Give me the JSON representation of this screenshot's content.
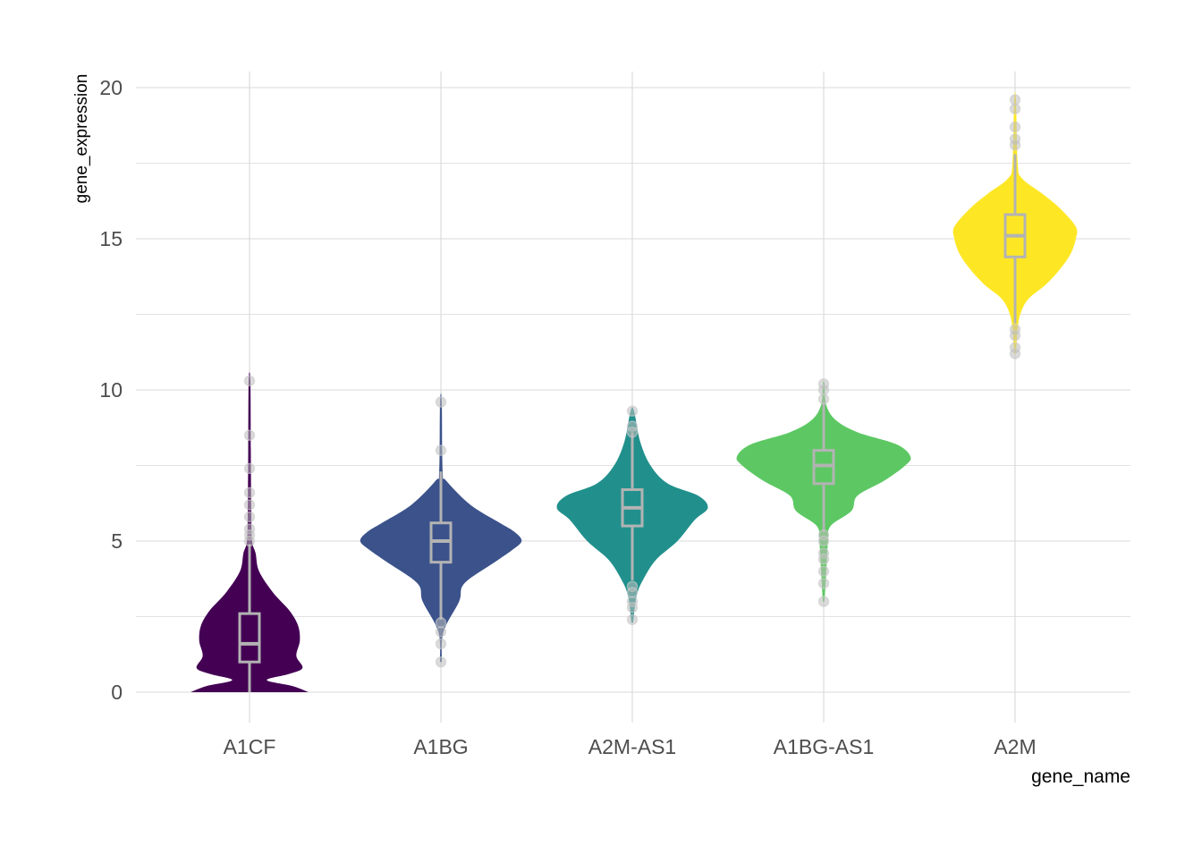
{
  "chart_data": {
    "type": "violin",
    "title": "",
    "xlabel": "gene_name",
    "ylabel": "gene_expression",
    "ylim": [
      -1,
      21
    ],
    "yticks": [
      "0",
      "5",
      "10",
      "15",
      "20"
    ],
    "grid": true,
    "legend": "none",
    "box_color": "#B3B3B3",
    "outlier_color": "#BEBEBE",
    "categories": [
      "A1CF",
      "A1BG",
      "A2M-AS1",
      "A1BG-AS1",
      "A2M"
    ],
    "series": [
      {
        "category": "A1CF",
        "color": "#440154",
        "box": {
          "q1": 1.0,
          "median": 1.6,
          "q3": 2.6,
          "whisker_low": 0.0,
          "whisker_high": 4.9
        },
        "outliers": [
          10.3,
          8.5,
          7.4,
          6.6,
          6.2,
          5.8,
          5.4,
          5.2,
          5.0
        ],
        "density": [
          [
            0,
            0.68
          ],
          [
            0.2,
            0.5
          ],
          [
            0.4,
            0.2
          ],
          [
            0.6,
            0.45
          ],
          [
            0.8,
            0.61
          ],
          [
            1.2,
            0.54
          ],
          [
            1.7,
            0.58
          ],
          [
            2.2,
            0.56
          ],
          [
            2.7,
            0.46
          ],
          [
            3.3,
            0.27
          ],
          [
            4.0,
            0.11
          ],
          [
            4.6,
            0.07
          ],
          [
            5.0,
            0.03
          ],
          [
            6.0,
            0.02
          ],
          [
            8.0,
            0.015
          ],
          [
            10.3,
            0.01
          ]
        ]
      },
      {
        "category": "A1BG",
        "color": "#3B528B",
        "box": {
          "q1": 4.3,
          "median": 5.0,
          "q3": 5.6,
          "whisker_low": 2.4,
          "whisker_high": 7.3
        },
        "outliers": [
          9.6,
          8.0,
          2.3,
          2.0,
          1.6,
          1.0
        ],
        "density": [
          [
            1.0,
            0.01
          ],
          [
            2.0,
            0.03
          ],
          [
            3.0,
            0.21
          ],
          [
            3.6,
            0.27
          ],
          [
            4.3,
            0.62
          ],
          [
            4.7,
            0.82
          ],
          [
            5.0,
            0.93
          ],
          [
            5.3,
            0.85
          ],
          [
            5.6,
            0.68
          ],
          [
            6.2,
            0.34
          ],
          [
            7.0,
            0.06
          ],
          [
            7.3,
            0.02
          ],
          [
            9.6,
            0.01
          ]
        ]
      },
      {
        "category": "A2M-AS1",
        "color": "#21908C",
        "box": {
          "q1": 5.5,
          "median": 6.1,
          "q3": 6.7,
          "whisker_low": 3.7,
          "whisker_high": 8.6
        },
        "outliers": [
          9.3,
          8.8,
          8.6,
          3.5,
          3.3,
          3.0,
          2.8,
          2.4
        ],
        "density": [
          [
            2.3,
            0.01
          ],
          [
            3.2,
            0.05
          ],
          [
            3.8,
            0.14
          ],
          [
            4.4,
            0.28
          ],
          [
            5.0,
            0.52
          ],
          [
            5.7,
            0.72
          ],
          [
            6.1,
            0.87
          ],
          [
            6.5,
            0.76
          ],
          [
            6.9,
            0.41
          ],
          [
            7.5,
            0.21
          ],
          [
            8.3,
            0.09
          ],
          [
            9.3,
            0.02
          ]
        ]
      },
      {
        "category": "A1BG-AS1",
        "color": "#5DC863",
        "box": {
          "q1": 6.9,
          "median": 7.5,
          "q3": 8.0,
          "whisker_low": 5.3,
          "whisker_high": 9.6
        },
        "outliers": [
          10.2,
          10.0,
          9.7,
          5.2,
          5.0,
          4.6,
          4.4,
          4.0,
          3.6,
          3.0
        ],
        "density": [
          [
            3.0,
            0.01
          ],
          [
            4.0,
            0.03
          ],
          [
            5.0,
            0.05
          ],
          [
            5.5,
            0.08
          ],
          [
            6.0,
            0.32
          ],
          [
            6.5,
            0.39
          ],
          [
            7.0,
            0.7
          ],
          [
            7.5,
            0.94
          ],
          [
            7.8,
            1.0
          ],
          [
            8.2,
            0.84
          ],
          [
            8.6,
            0.39
          ],
          [
            9.0,
            0.14
          ],
          [
            9.5,
            0.03
          ],
          [
            10.2,
            0.01
          ]
        ]
      },
      {
        "category": "A2M",
        "color": "#FDE725",
        "box": {
          "q1": 14.4,
          "median": 15.1,
          "q3": 15.8,
          "whisker_low": 12.2,
          "whisker_high": 17.8
        },
        "outliers": [
          19.6,
          19.3,
          18.7,
          18.3,
          18.1,
          12.0,
          11.8,
          11.4,
          11.2
        ],
        "density": [
          [
            11.2,
            0.01
          ],
          [
            12.0,
            0.03
          ],
          [
            12.5,
            0.06
          ],
          [
            13.0,
            0.15
          ],
          [
            13.5,
            0.36
          ],
          [
            14.0,
            0.52
          ],
          [
            14.5,
            0.64
          ],
          [
            15.0,
            0.7
          ],
          [
            15.4,
            0.7
          ],
          [
            16.0,
            0.52
          ],
          [
            16.5,
            0.31
          ],
          [
            17.0,
            0.08
          ],
          [
            17.5,
            0.03
          ],
          [
            19.6,
            0.01
          ]
        ]
      }
    ]
  }
}
